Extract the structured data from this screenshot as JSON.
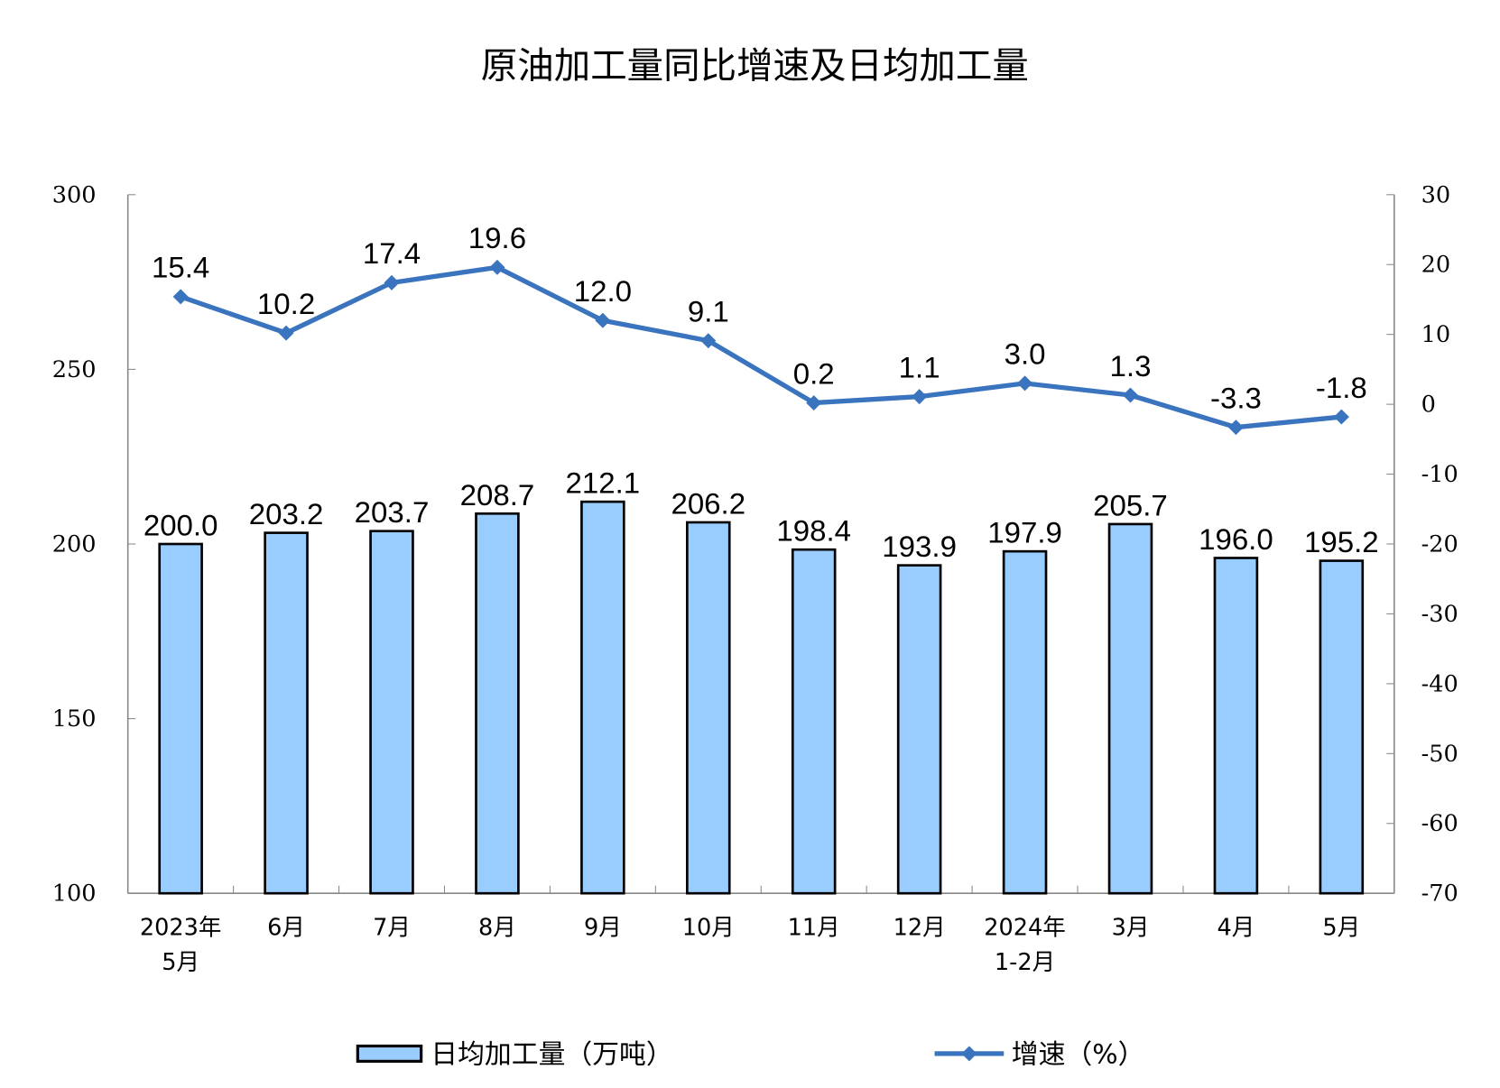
{
  "chart_data": {
    "type": "bar+line",
    "title": "原油加工量同比增速及日均加工量",
    "categories": [
      [
        "2023年",
        "5月"
      ],
      [
        "6月"
      ],
      [
        "7月"
      ],
      [
        "8月"
      ],
      [
        "9月"
      ],
      [
        "10月"
      ],
      [
        "11月"
      ],
      [
        "12月"
      ],
      [
        "2024年",
        "1-2月"
      ],
      [
        "3月"
      ],
      [
        "4月"
      ],
      [
        "5月"
      ]
    ],
    "series": [
      {
        "name": "日均加工量（万吨）",
        "type": "bar",
        "axis": "left",
        "color": "#99CCFF",
        "values": [
          200.0,
          203.2,
          203.7,
          208.7,
          212.1,
          206.2,
          198.4,
          193.9,
          197.9,
          205.7,
          196.0,
          195.2
        ],
        "labels": [
          "200.0",
          "203.2",
          "203.7",
          "208.7",
          "212.1",
          "206.2",
          "198.4",
          "193.9",
          "197.9",
          "205.7",
          "196.0",
          "195.2"
        ]
      },
      {
        "name": "增速（%）",
        "type": "line",
        "axis": "right",
        "color": "#3A73BE",
        "values": [
          15.4,
          10.2,
          17.4,
          19.6,
          12.0,
          9.1,
          0.2,
          1.1,
          3.0,
          1.3,
          -3.3,
          -1.8
        ],
        "labels": [
          "15.4",
          "10.2",
          "17.4",
          "19.6",
          "12.0",
          "9.1",
          "0.2",
          "1.1",
          "3.0",
          "1.3",
          "-3.3",
          "-1.8"
        ]
      }
    ],
    "y_left": {
      "range": [
        100,
        300
      ],
      "ticks": [
        "100",
        "150",
        "200",
        "250",
        "300"
      ]
    },
    "y_right": {
      "range": [
        -70,
        30
      ],
      "ticks": [
        "-70",
        "-60",
        "-50",
        "-40",
        "-30",
        "-20",
        "-10",
        "0",
        "10",
        "20",
        "30"
      ]
    },
    "grid": false,
    "legend_position": "bottom"
  }
}
